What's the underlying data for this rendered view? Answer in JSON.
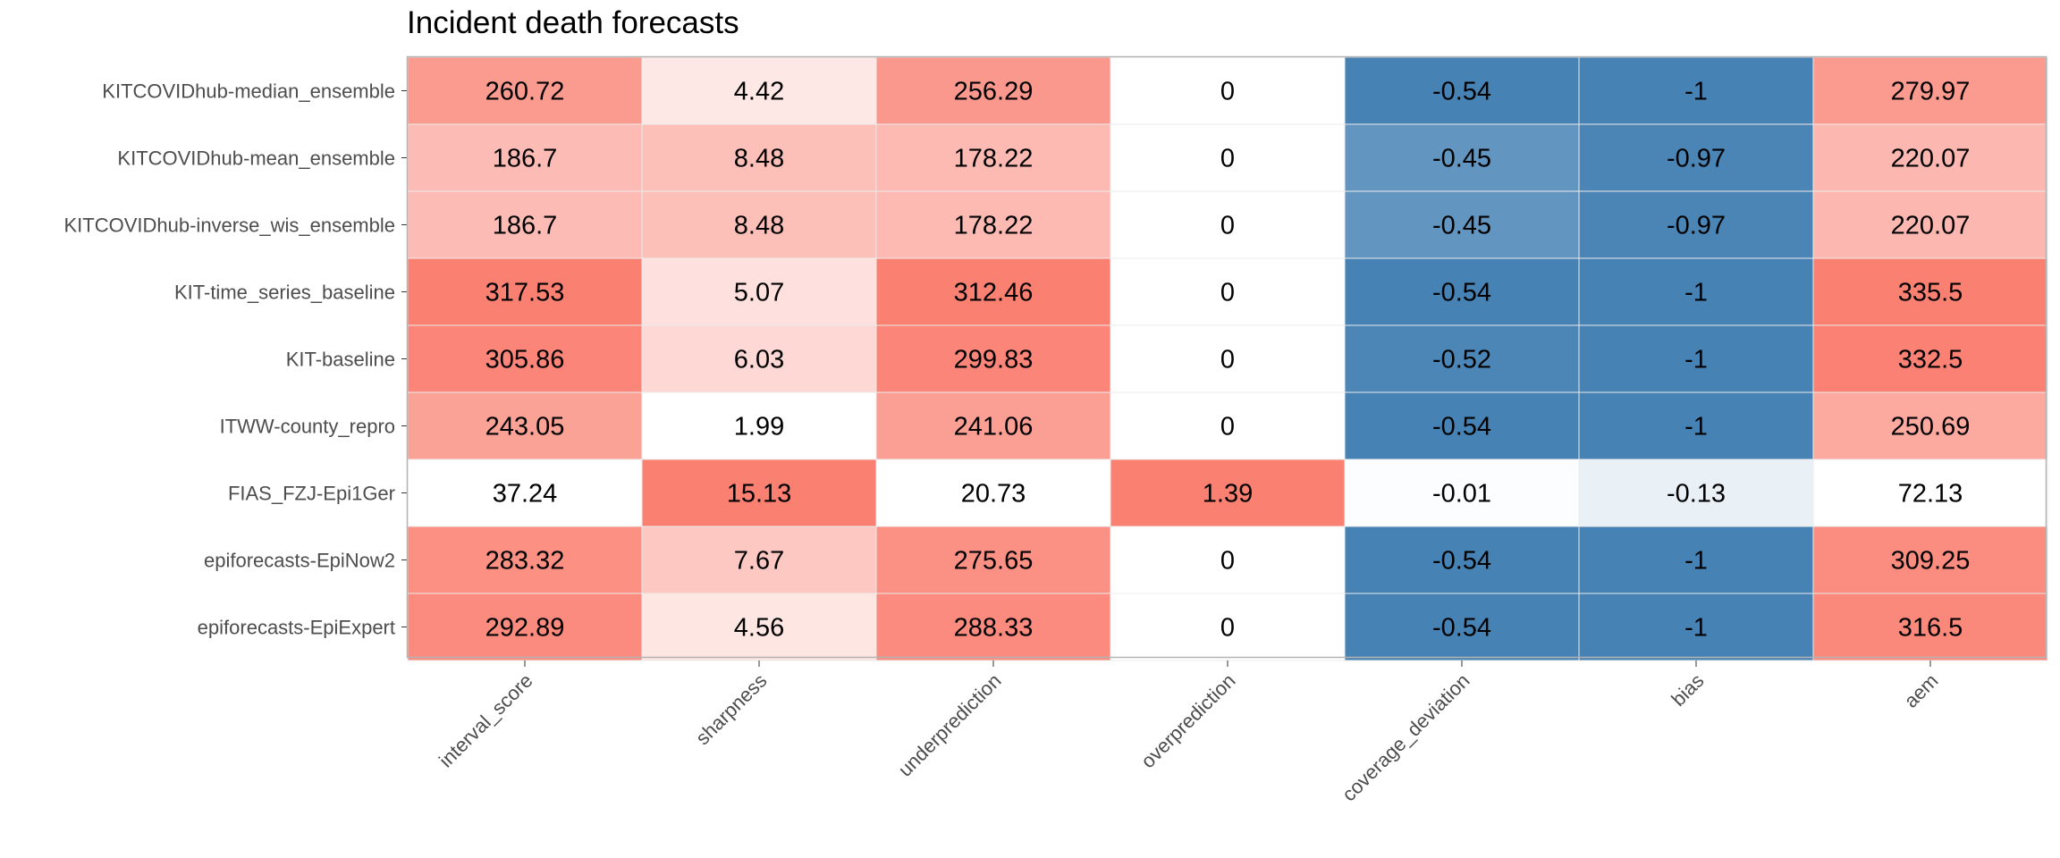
{
  "chart_data": {
    "type": "heatmap",
    "title": "Incident death forecasts",
    "rows": [
      "KITCOVIDhub-median_ensemble",
      "KITCOVIDhub-mean_ensemble",
      "KITCOVIDhub-inverse_wis_ensemble",
      "KIT-time_series_baseline",
      "KIT-baseline",
      "ITWW-county_repro",
      "FIAS_FZJ-Epi1Ger",
      "epiforecasts-EpiNow2",
      "epiforecasts-EpiExpert"
    ],
    "columns": [
      "interval_score",
      "sharpness",
      "underprediction",
      "overprediction",
      "coverage_deviation",
      "bias",
      "aem"
    ],
    "values": [
      [
        260.72,
        4.42,
        256.29,
        0,
        -0.54,
        -1,
        279.97
      ],
      [
        186.7,
        8.48,
        178.22,
        0,
        -0.45,
        -0.97,
        220.07
      ],
      [
        186.7,
        8.48,
        178.22,
        0,
        -0.45,
        -0.97,
        220.07
      ],
      [
        317.53,
        5.07,
        312.46,
        0,
        -0.54,
        -1,
        335.5
      ],
      [
        305.86,
        6.03,
        299.83,
        0,
        -0.52,
        -1,
        332.5
      ],
      [
        243.05,
        1.99,
        241.06,
        0,
        -0.54,
        -1,
        250.69
      ],
      [
        37.24,
        15.13,
        20.73,
        1.39,
        -0.01,
        -0.13,
        72.13
      ],
      [
        283.32,
        7.67,
        275.65,
        0,
        -0.54,
        -1,
        309.25
      ],
      [
        292.89,
        4.56,
        288.33,
        0,
        -0.54,
        -1,
        316.5
      ]
    ],
    "colors": {
      "high": "#fa8072",
      "low": "#ffffff",
      "negative": "#4682b4",
      "grid": "#ebebeb",
      "border": "#b3b3b3"
    }
  }
}
